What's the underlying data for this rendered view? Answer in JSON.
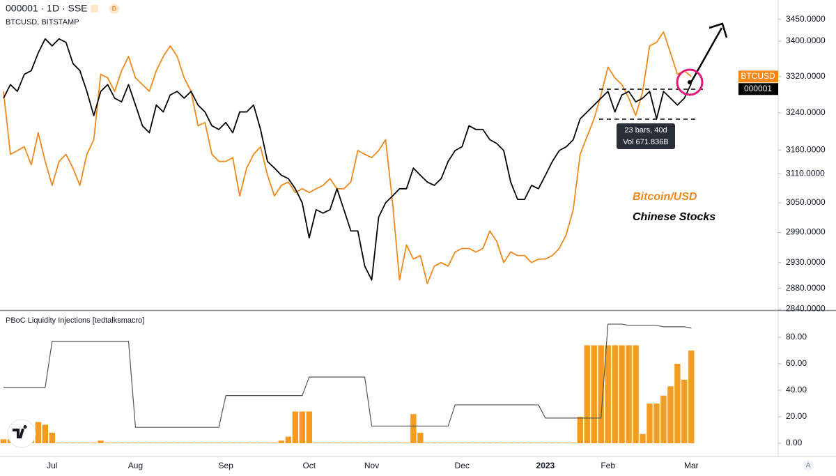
{
  "header": {
    "badge": "D",
    "scale_button": "A"
  },
  "chart_data": [
    {
      "type": "line",
      "title": "000001 · 1D · SSE",
      "subtitle": "BTCUSD, BITSTAMP",
      "log": true,
      "ylim": [
        2838,
        3495
      ],
      "yticks": [
        {
          "value": 3450,
          "label": "3450.0000"
        },
        {
          "value": 3400,
          "label": "3400.0000"
        },
        {
          "value": 3320,
          "label": "3320.0000"
        },
        {
          "value": 3240,
          "label": "3240.0000"
        },
        {
          "value": 3160,
          "label": "3160.0000"
        },
        {
          "value": 3110,
          "label": "3110.0000"
        },
        {
          "value": 3050,
          "label": "3050.0000"
        },
        {
          "value": 2990,
          "label": "2990.0000"
        },
        {
          "value": 2930,
          "label": "2930.0000"
        },
        {
          "value": 2880,
          "label": "2880.0000"
        },
        {
          "value": 2840,
          "label": "2840.0000"
        }
      ],
      "annotations": [
        "23 bars, 40d",
        "Vol 671.836B"
      ],
      "series": [
        {
          "name": "Bitcoin/USD",
          "symbol": "BTCUSD",
          "color": "#f0891a",
          "values": [
            3287,
            3151,
            3159,
            3167,
            3129,
            3197,
            3136,
            3086,
            3136,
            3151,
            3122,
            3086,
            3151,
            3182,
            3325,
            3317,
            3287,
            3333,
            3365,
            3317,
            3302,
            3287,
            3333,
            3365,
            3389,
            3365,
            3317,
            3287,
            3212,
            3219,
            3151,
            3136,
            3136,
            3144,
            3064,
            3122,
            3151,
            3167,
            3107,
            3064,
            3086,
            3093,
            3071,
            3079,
            3071,
            3079,
            3086,
            3100,
            3079,
            3079,
            3093,
            3159,
            3151,
            3144,
            3159,
            3182,
            3050,
            2896,
            2965,
            2937,
            2944,
            2889,
            2923,
            2930,
            2923,
            2951,
            2958,
            2958,
            2951,
            2958,
            2993,
            2972,
            2930,
            2951,
            2944,
            2944,
            2930,
            2937,
            2937,
            2944,
            2958,
            2986,
            3036,
            3151,
            3189,
            3227,
            3279,
            3341,
            3317,
            3302,
            3272,
            3234,
            3287,
            3389,
            3397,
            3421,
            3373,
            3325,
            3333,
            3320,
            null,
            null,
            null,
            null,
            null,
            null,
            null,
            null,
            null,
            null,
            null,
            null
          ]
        },
        {
          "name": "Chinese Stocks",
          "symbol": "000001",
          "color": "#000000",
          "values": [
            3272,
            3302,
            3287,
            3325,
            3333,
            3373,
            3405,
            3389,
            3405,
            3397,
            3349,
            3333,
            3287,
            3234,
            3287,
            3302,
            3272,
            3264,
            3302,
            3257,
            3212,
            3197,
            3257,
            3242,
            3279,
            3287,
            3272,
            3287,
            3257,
            3242,
            3212,
            3204,
            3219,
            3197,
            3242,
            3242,
            3257,
            3204,
            3136,
            3122,
            3107,
            3100,
            3079,
            3050,
            2979,
            3036,
            3029,
            3036,
            3079,
            3036,
            2993,
            2993,
            2923,
            2896,
            3021,
            3050,
            3064,
            3079,
            3079,
            3122,
            3107,
            3093,
            3086,
            3100,
            3136,
            3159,
            3167,
            3212,
            3204,
            3204,
            3182,
            3174,
            3159,
            3093,
            3057,
            3057,
            3086,
            3079,
            3107,
            3136,
            3159,
            3167,
            3182,
            3227,
            3242,
            3257,
            3272,
            3287,
            3242,
            3279,
            3287,
            3264,
            3272,
            3287,
            3227,
            3287,
            3272,
            3257,
            3272,
            3305,
            null,
            null,
            null,
            null,
            null,
            null,
            null,
            null,
            null,
            null,
            null,
            null
          ]
        }
      ]
    },
    {
      "type": "combo",
      "title": "PBoC Liquidity Injections [tedtalksmacro]",
      "ylim": [
        -10,
        99.5
      ],
      "yticks": [
        {
          "value": 0,
          "label": "0.00"
        },
        {
          "value": 20,
          "label": "20.00"
        },
        {
          "value": 40,
          "label": "40.00"
        },
        {
          "value": 60,
          "label": "60.00"
        },
        {
          "value": 80,
          "label": "80.00"
        }
      ],
      "categories": [
        null,
        null,
        null,
        null,
        null,
        null,
        null,
        "Jul",
        null,
        null,
        null,
        null,
        null,
        null,
        null,
        null,
        null,
        null,
        null,
        "Aug",
        null,
        null,
        null,
        null,
        null,
        null,
        null,
        null,
        null,
        null,
        null,
        null,
        "Sep",
        null,
        null,
        null,
        null,
        null,
        null,
        null,
        null,
        null,
        null,
        null,
        "Oct",
        null,
        null,
        null,
        null,
        null,
        null,
        null,
        null,
        "Nov",
        null,
        null,
        null,
        null,
        null,
        null,
        null,
        null,
        null,
        null,
        null,
        null,
        "Dec",
        null,
        null,
        null,
        null,
        null,
        null,
        null,
        null,
        null,
        null,
        null,
        "2023",
        null,
        null,
        null,
        null,
        null,
        null,
        null,
        null,
        "Feb",
        null,
        null,
        null,
        null,
        null,
        null,
        null,
        null,
        null,
        null,
        null,
        "Mar",
        null,
        null,
        null,
        null,
        null,
        null,
        null,
        null,
        null,
        null,
        null,
        null
      ],
      "series": [
        {
          "type": "bar",
          "color": "#f39c1f",
          "values": [
            3,
            3,
            0.5,
            0.5,
            10,
            16,
            14,
            8,
            0.5,
            0.5,
            0.5,
            0.5,
            0.5,
            0.5,
            2,
            0.5,
            0.5,
            0.5,
            0.5,
            0.5,
            0.5,
            0.5,
            0.5,
            0.5,
            0.5,
            0.5,
            0.5,
            0.5,
            0.5,
            0.5,
            0.5,
            0.5,
            0.5,
            0.5,
            0.5,
            0.5,
            0.5,
            0.5,
            0.5,
            0.5,
            2,
            5,
            24,
            24,
            24,
            0.5,
            0.5,
            0.5,
            0.5,
            0.5,
            0.5,
            0.5,
            0.5,
            0.5,
            0.5,
            0.5,
            0.5,
            0.5,
            0.5,
            22,
            8,
            0.5,
            0.5,
            0.5,
            0.5,
            0.5,
            0.5,
            0.5,
            0.5,
            0.5,
            0.5,
            0.5,
            0.5,
            0.5,
            0.5,
            0.5,
            0.5,
            0.5,
            0.5,
            0.5,
            0.5,
            0.5,
            0.5,
            20,
            74,
            74,
            74,
            74,
            74,
            74,
            74,
            74,
            7,
            30,
            30,
            36,
            43,
            60,
            48,
            70,
            null,
            null,
            null,
            null,
            null,
            null,
            null,
            null,
            null,
            null,
            null,
            null
          ]
        },
        {
          "type": "line",
          "color": "#555555",
          "values": [
            42,
            42,
            42,
            42,
            42,
            42,
            42,
            77,
            77,
            77,
            77,
            77,
            77,
            77,
            77,
            77,
            77,
            77,
            77,
            12,
            12,
            12,
            12,
            12,
            12,
            12,
            12,
            12,
            12,
            12,
            12,
            12,
            36,
            36,
            36,
            36,
            36,
            36,
            36,
            36,
            36,
            36,
            36,
            36,
            50,
            50,
            50,
            50,
            50,
            50,
            50,
            50,
            50,
            13,
            13,
            13,
            13,
            13,
            13,
            13,
            13,
            13,
            13,
            13,
            13,
            29,
            29,
            29,
            29,
            29,
            29,
            29,
            29,
            29,
            29,
            29,
            29,
            29,
            19,
            19,
            19,
            19,
            19,
            19,
            19,
            19,
            19,
            90,
            90,
            90,
            89,
            89,
            89,
            89,
            89,
            88,
            88,
            88,
            88,
            87,
            null,
            null,
            null,
            null,
            null,
            null,
            null,
            null,
            null,
            null,
            null,
            null
          ]
        }
      ]
    }
  ]
}
